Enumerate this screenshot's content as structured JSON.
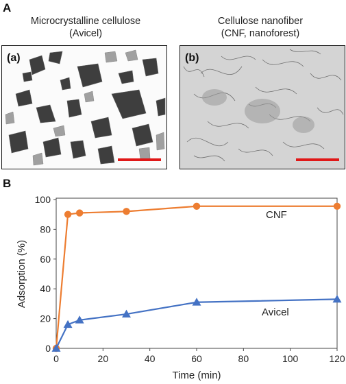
{
  "panel_a": {
    "letter": "A",
    "images": [
      {
        "sub_label": "(a)",
        "caption_line1": "Microcrystalline cellulose",
        "caption_line2": "(Avicel)"
      },
      {
        "sub_label": "(b)",
        "caption_line1": "Cellulose nanofiber",
        "caption_line2": "(CNF, nanoforest)"
      }
    ],
    "scale_bar_color": "#e01818"
  },
  "panel_b": {
    "letter": "B"
  },
  "chart_data": {
    "type": "line",
    "xlabel": "Time (min)",
    "ylabel": "Adsorption (%)",
    "xlim": [
      0,
      120
    ],
    "ylim": [
      0,
      100
    ],
    "xticks": [
      0,
      20,
      40,
      60,
      80,
      100,
      120
    ],
    "yticks": [
      0,
      20,
      40,
      60,
      80,
      100
    ],
    "grid": false,
    "series": [
      {
        "name": "CNF",
        "marker": "circle",
        "color": "#ed7d31",
        "x": [
          0,
          5,
          10,
          30,
          60,
          120
        ],
        "y": [
          0,
          90,
          91,
          92,
          95.5,
          95.5
        ]
      },
      {
        "name": "Avicel",
        "marker": "triangle",
        "color": "#4472c4",
        "x": [
          0,
          5,
          10,
          30,
          60,
          120
        ],
        "y": [
          0,
          16,
          19,
          23,
          31,
          33
        ]
      }
    ]
  }
}
